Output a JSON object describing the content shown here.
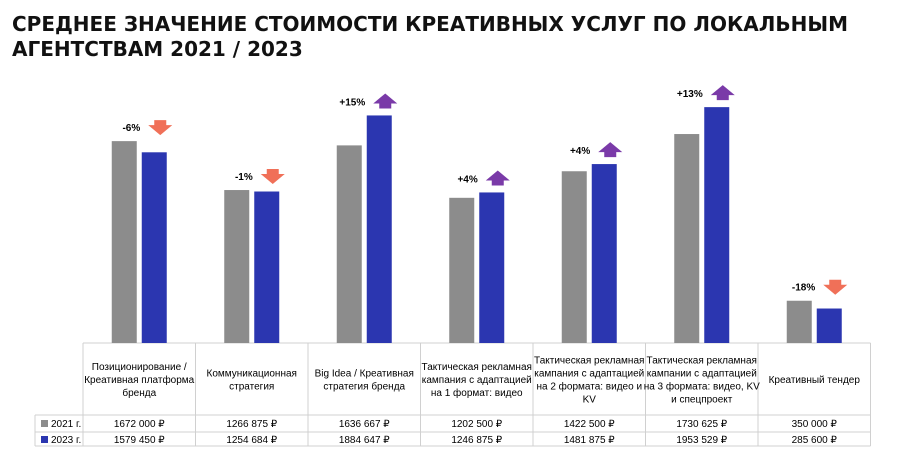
{
  "title": "СРЕДНЕЕ ЗНАЧЕНИЕ СТОИМОСТИ КРЕАТИВНЫХ УСЛУГ ПО ЛОКАЛЬНЫМ АГЕНТСТВАМ 2021 / 2023",
  "colors": {
    "series_2021": "#8c8c8c",
    "series_2023": "#2b36b0",
    "arrow_down": "#f07058",
    "arrow_up": "#7a3aa8"
  },
  "chart_data": {
    "type": "bar",
    "title": "СРЕДНЕЕ ЗНАЧЕНИЕ СТОИМОСТИ КРЕАТИВНЫХ УСЛУГ ПО ЛОКАЛЬНЫМ АГЕНТСТВАМ 2021 / 2023",
    "categories": [
      "Позиционирование / Креативная платформа бренда",
      "Коммуникационная стратегия",
      "Big Idea / Креативная стратегия бренда",
      "Тактическая рекламная кампания с адаптацией на 1 формат: видео",
      "Тактическая рекламная кампания с адаптацией на 2 формата: видео и KV",
      "Тактическая рекламная кампании с адаптацией на 3 формата: видео, KV и спецпроект",
      "Креативный тендер"
    ],
    "series": [
      {
        "name": "2021 г.",
        "values": [
          1672000,
          1266875,
          1636667,
          1202500,
          1422500,
          1730625,
          350000
        ],
        "labels": [
          "1672 000 ₽",
          "1266 875 ₽",
          "1636 667 ₽",
          "1202 500 ₽",
          "1422 500 ₽",
          "1730 625 ₽",
          "350 000 ₽"
        ]
      },
      {
        "name": "2023 г.",
        "values": [
          1579450,
          1254684,
          1884647,
          1246875,
          1481875,
          1953529,
          285600
        ],
        "labels": [
          "1579 450 ₽",
          "1254 684 ₽",
          "1884 647 ₽",
          "1246 875 ₽",
          "1481 875 ₽",
          "1953 529 ₽",
          "285 600 ₽"
        ]
      }
    ],
    "changes": [
      "-6%",
      "-1%",
      "+15%",
      "+4%",
      "+4%",
      "+13%",
      "-18%"
    ],
    "change_direction": [
      "down",
      "down",
      "up",
      "up",
      "up",
      "up",
      "down"
    ],
    "ylim": [
      0,
      2200000
    ],
    "grid": false,
    "legend": "data-table"
  }
}
